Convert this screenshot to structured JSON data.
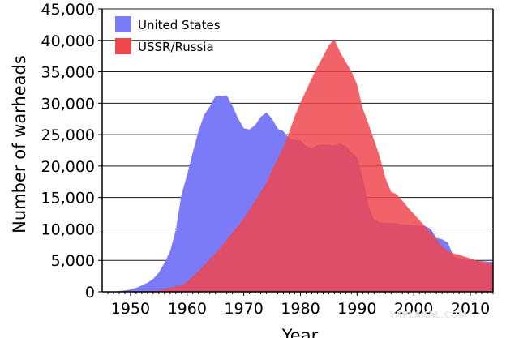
{
  "chart_data": {
    "type": "area",
    "xlabel": "Year",
    "ylabel": "Number of warheads",
    "xlim": [
      1945,
      2014
    ],
    "ylim": [
      0,
      45000
    ],
    "x_ticks": [
      1950,
      1960,
      1970,
      1980,
      1990,
      2000,
      2010
    ],
    "x_tick_labels": [
      "1950",
      "1960",
      "1970",
      "1980",
      "1990",
      "2000",
      "2010"
    ],
    "y_ticks": [
      0,
      5000,
      10000,
      15000,
      20000,
      25000,
      30000,
      35000,
      40000,
      45000
    ],
    "y_tick_labels": [
      "0",
      "5,000",
      "10,000",
      "15,000",
      "20,000",
      "25,000",
      "30,000",
      "35,000",
      "40,000",
      "45,000"
    ],
    "grid": "horizontal",
    "legend_position": "top-left",
    "series": [
      {
        "name": "United States",
        "color": "#7b7bf7",
        "x": [
          1945,
          1946,
          1947,
          1948,
          1949,
          1950,
          1951,
          1952,
          1953,
          1954,
          1955,
          1956,
          1957,
          1958,
          1959,
          1960,
          1961,
          1962,
          1963,
          1964,
          1965,
          1966,
          1967,
          1968,
          1969,
          1970,
          1971,
          1972,
          1973,
          1974,
          1975,
          1976,
          1977,
          1978,
          1979,
          1980,
          1981,
          1982,
          1983,
          1984,
          1985,
          1986,
          1987,
          1988,
          1989,
          1990,
          1991,
          1992,
          1993,
          1994,
          1995,
          1996,
          1997,
          1998,
          1999,
          2000,
          2001,
          2002,
          2003,
          2004,
          2005,
          2006,
          2007,
          2008,
          2009,
          2010,
          2011,
          2012,
          2013,
          2014
        ],
        "values": [
          6,
          11,
          32,
          110,
          235,
          369,
          640,
          1005,
          1436,
          2063,
          3057,
          4618,
          6444,
          9822,
          15468,
          18638,
          22229,
          25540,
          28133,
          29463,
          31139,
          31175,
          31255,
          29561,
          27552,
          26008,
          25830,
          26516,
          27835,
          28537,
          27519,
          25914,
          25542,
          24418,
          24138,
          24104,
          23208,
          22886,
          23305,
          23459,
          23368,
          23317,
          23575,
          23205,
          22217,
          21392,
          18306,
          13731,
          11536,
          11012,
          10953,
          11011,
          10903,
          10732,
          10685,
          10577,
          10526,
          10457,
          10027,
          8570,
          8360,
          7853,
          5709,
          5273,
          5113,
          5066,
          4897,
          4881,
          4804,
          4717
        ]
      },
      {
        "name": "USSR/Russia",
        "color": "#f0474f",
        "x": [
          1945,
          1949,
          1950,
          1951,
          1952,
          1953,
          1954,
          1955,
          1956,
          1957,
          1958,
          1959,
          1960,
          1961,
          1962,
          1963,
          1964,
          1965,
          1966,
          1967,
          1968,
          1969,
          1970,
          1971,
          1972,
          1973,
          1974,
          1975,
          1976,
          1977,
          1978,
          1979,
          1980,
          1981,
          1982,
          1983,
          1984,
          1985,
          1986,
          1987,
          1988,
          1989,
          1990,
          1991,
          1992,
          1993,
          1994,
          1995,
          1996,
          1997,
          1998,
          1999,
          2000,
          2001,
          2002,
          2003,
          2004,
          2005,
          2006,
          2007,
          2008,
          2009,
          2010,
          2011,
          2012,
          2013,
          2014
        ],
        "values": [
          0,
          1,
          5,
          25,
          50,
          120,
          150,
          200,
          426,
          660,
          869,
          1060,
          1605,
          2471,
          3322,
          4238,
          5221,
          6129,
          7089,
          8339,
          9399,
          10538,
          11643,
          13092,
          14478,
          15915,
          17385,
          19443,
          21205,
          23044,
          25393,
          27935,
          30062,
          32049,
          33952,
          35804,
          37431,
          39197,
          40159,
          38107,
          36538,
          35078,
          32980,
          29154,
          26734,
          24169,
          21500,
          18100,
          15917,
          15495,
          14495,
          13400,
          12408,
          11400,
          10400,
          9400,
          8400,
          7200,
          6500,
          6100,
          5900,
          5600,
          5300,
          5000,
          4800,
          4600,
          4400
        ]
      }
    ]
  },
  "watermark": "YAPLAKAL.COM"
}
